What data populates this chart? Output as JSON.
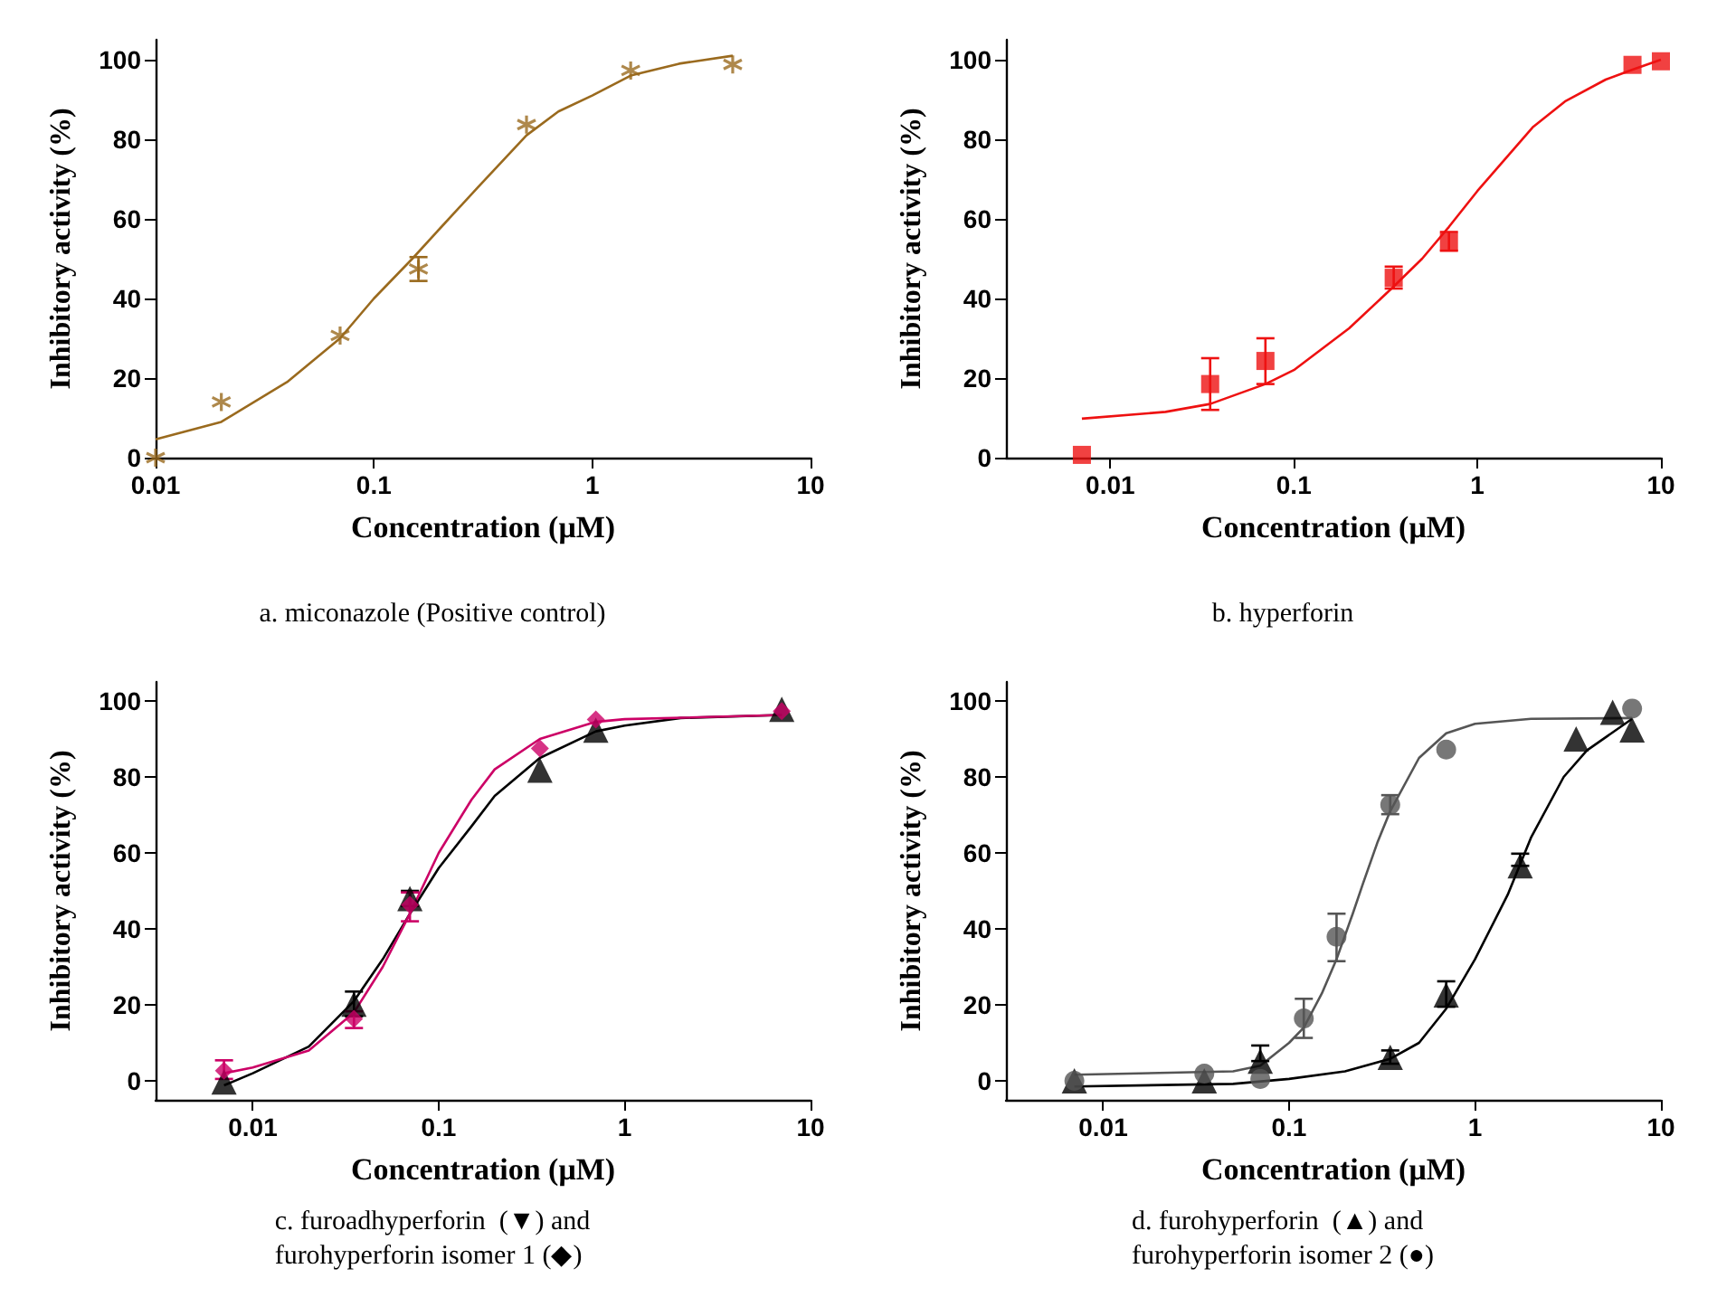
{
  "chart_data": [
    {
      "type": "scatter",
      "xlabel": "Concentration (μM)",
      "ylabel": "Inhibitory activity (%)",
      "log": "x",
      "xlim": [
        0.01,
        10
      ],
      "xticks": [
        0.01,
        0.1,
        1,
        10
      ],
      "ylim": [
        0,
        105
      ],
      "yticks": [
        0,
        20,
        40,
        60,
        80,
        100
      ],
      "annotations": [
        "a. miconazole (Positive control)"
      ],
      "series": [
        {
          "color": "#9a6a1e",
          "marker": "star",
          "x": [
            0.01,
            0.02,
            0.07,
            0.16,
            0.5,
            1.5,
            4.4
          ],
          "values": [
            0,
            14,
            30.7,
            47.4,
            83.7,
            97.3,
            98.8
          ],
          "errors": [
            null,
            null,
            null,
            3,
            null,
            null,
            null
          ]
        },
        {
          "type": "line",
          "color": "#9a6a1e",
          "marker": "none",
          "x": [
            0.01,
            0.02,
            0.04,
            0.07,
            0.1,
            0.15,
            0.2,
            0.3,
            0.5,
            0.7,
            1,
            1.5,
            2.5,
            4.4
          ],
          "values": [
            4.6,
            9,
            19,
            30,
            40,
            50,
            57.5,
            68,
            81,
            87,
            91,
            96,
            99,
            101
          ]
        }
      ]
    },
    {
      "type": "scatter",
      "xlabel": "Concentration (μM)",
      "ylabel": "Inhibitory activity (%)",
      "log": "x",
      "xlim": [
        0.0027,
        10
      ],
      "xticks": [
        0.01,
        0.1,
        1,
        10
      ],
      "ylim": [
        0,
        105
      ],
      "yticks": [
        0,
        20,
        40,
        60,
        80,
        100
      ],
      "annotations": [
        "b. hyperforin"
      ],
      "series": [
        {
          "color": "#ee1111",
          "marker": "square",
          "x": [
            0.007,
            0.035,
            0.07,
            0.35,
            0.7,
            7,
            10
          ],
          "values": [
            0.7,
            18.5,
            24.3,
            45.2,
            54.2,
            98.7,
            99.6
          ],
          "errors": [
            null,
            [
              12,
              25
            ],
            [
              18.5,
              30
            ],
            [
              42.5,
              48
            ],
            [
              52,
              56.7
            ],
            null,
            null
          ]
        },
        {
          "type": "line",
          "color": "#ee1111",
          "marker": "none",
          "x": [
            0.007,
            0.02,
            0.035,
            0.07,
            0.1,
            0.2,
            0.35,
            0.5,
            0.7,
            1,
            2,
            3,
            5,
            7,
            10
          ],
          "values": [
            9.8,
            11.5,
            13.5,
            18.5,
            22,
            32.5,
            43,
            50,
            58,
            67,
            83,
            89.5,
            95,
            97.5,
            100
          ]
        }
      ]
    },
    {
      "type": "scatter",
      "xlabel": "Concentration (μM)",
      "ylabel": "Inhibitory activity (%)",
      "log": "x",
      "xlim": [
        0.003,
        10
      ],
      "xticks": [
        0.01,
        0.1,
        1,
        10
      ],
      "ylim": [
        -5,
        105
      ],
      "yticks": [
        0,
        20,
        40,
        60,
        80,
        100
      ],
      "annotations": [
        "c. furoadhyperforin  (▼) and\nfurohyperforin isomer 1 (◆)"
      ],
      "series": [
        {
          "type": "line",
          "color": "#000000",
          "marker": "none",
          "x": [
            0.007,
            0.01,
            0.02,
            0.035,
            0.05,
            0.07,
            0.1,
            0.15,
            0.2,
            0.35,
            0.7,
            1,
            2,
            7
          ],
          "values": [
            -1.2,
            2,
            9,
            21,
            32,
            44,
            56,
            67,
            75,
            85,
            92,
            93.5,
            95.5,
            96.3
          ]
        },
        {
          "type": "line",
          "color": "#cc0066",
          "marker": "none",
          "x": [
            0.007,
            0.01,
            0.02,
            0.035,
            0.05,
            0.07,
            0.1,
            0.15,
            0.2,
            0.35,
            0.7,
            1,
            7
          ],
          "values": [
            2,
            3.5,
            8,
            18,
            30,
            44,
            60,
            74,
            82,
            90,
            94.5,
            95.2,
            96.3
          ]
        },
        {
          "color": "#000000",
          "marker": "triangle",
          "x": [
            0.007,
            0.035,
            0.07,
            0.35,
            0.7,
            7
          ],
          "values": [
            -0.3,
            20.2,
            48,
            81.8,
            92.3,
            97.8
          ],
          "errors": [
            null,
            [
              17,
              23.5
            ],
            [
              46,
              50
            ],
            null,
            null,
            null
          ]
        },
        {
          "color": "#cc0066",
          "marker": "diamond",
          "x": [
            0.007,
            0.035,
            0.07,
            0.35,
            0.7,
            7
          ],
          "values": [
            2.7,
            16.3,
            46.3,
            87.5,
            95.1,
            97.3
          ],
          "errors": [
            [
              0.5,
              5.4
            ],
            [
              13.9,
              18.3
            ],
            [
              42,
              49.6
            ],
            null,
            null,
            null
          ]
        }
      ]
    },
    {
      "type": "scatter",
      "xlabel": "Concentration (μM)",
      "ylabel": "Inhibitory activity (%)",
      "log": "x",
      "xlim": [
        0.003,
        10
      ],
      "xticks": [
        0.01,
        0.1,
        1,
        10
      ],
      "ylim": [
        -5,
        105
      ],
      "yticks": [
        0,
        20,
        40,
        60,
        80,
        100
      ],
      "annotations": [
        "d. furohyperforin  (▲) and\nfurohyperforin isomer 2 (●)"
      ],
      "series": [
        {
          "type": "line",
          "color": "#555555",
          "marker": "none",
          "x": [
            0.007,
            0.05,
            0.07,
            0.1,
            0.12,
            0.15,
            0.18,
            0.22,
            0.25,
            0.3,
            0.35,
            0.5,
            0.7,
            1,
            2,
            7
          ],
          "values": [
            1.6,
            2.5,
            4,
            10,
            14,
            23,
            32,
            44,
            52,
            63,
            71,
            85,
            91.5,
            94,
            95.3,
            95.5
          ]
        },
        {
          "type": "line",
          "color": "#000000",
          "marker": "none",
          "x": [
            0.007,
            0.05,
            0.1,
            0.2,
            0.35,
            0.5,
            0.7,
            1,
            1.5,
            2,
            3,
            4,
            7
          ],
          "values": [
            -1.5,
            -0.8,
            0.5,
            2.5,
            5.8,
            10,
            19,
            32,
            49,
            64,
            80,
            87,
            95.3
          ]
        },
        {
          "color": "#000000",
          "marker": "triangle",
          "x": [
            0.007,
            0.035,
            0.07,
            0.35,
            0.7,
            1.75,
            3.5,
            5.5,
            7
          ],
          "values": [
            0,
            0,
            5.2,
            6.2,
            22.6,
            56.6,
            90,
            97,
            92.4
          ],
          "errors": [
            null,
            null,
            [
              5.2,
              9.3
            ],
            [
              4.5,
              8
            ],
            [
              19.5,
              26.2
            ],
            [
              56.6,
              59.8
            ],
            null,
            null,
            null
          ]
        },
        {
          "color": "#555555",
          "marker": "circle",
          "x": [
            0.007,
            0.035,
            0.07,
            0.12,
            0.18,
            0.35,
            0.7,
            7
          ],
          "values": [
            0,
            1.9,
            0.5,
            16.4,
            37.9,
            72.7,
            87.2,
            98
          ],
          "errors": [
            null,
            null,
            null,
            [
              11.3,
              21.6
            ],
            [
              31.5,
              44
            ],
            [
              70.2,
              75.2
            ],
            null,
            null
          ]
        }
      ]
    }
  ]
}
